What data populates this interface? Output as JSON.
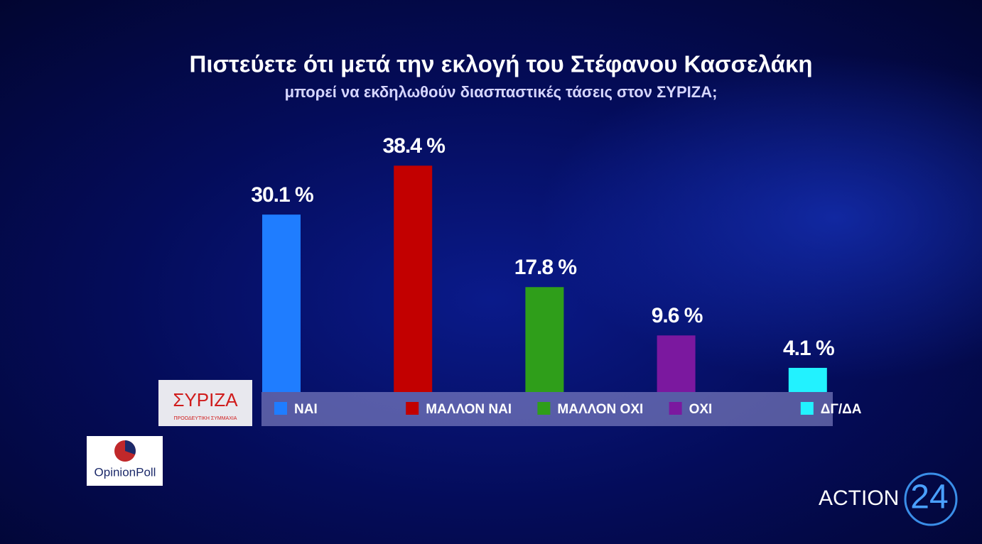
{
  "chart_data": {
    "type": "bar",
    "title": "Πιστεύετε ότι μετά την εκλογή του Στέφανου Κασσελάκη",
    "subtitle": "μπορεί να εκδηλωθούν διασπαστικές τάσεις στον ΣΥΡΙΖΑ;",
    "categories": [
      "ΝΑΙ",
      "ΜΑΛΛΟΝ ΝΑΙ",
      "ΜΑΛΛΟΝ ΟΧΙ",
      "ΟΧΙ",
      "ΔΓ/ΔΑ"
    ],
    "values": [
      30.1,
      38.4,
      17.8,
      9.6,
      4.1
    ],
    "value_labels": [
      "30.1 %",
      "38.4 %",
      "17.8 %",
      "9.6 %",
      "4.1 %"
    ],
    "colors": [
      "#1f7dff",
      "#c20000",
      "#2f9e1a",
      "#7b189f",
      "#22f2ff"
    ]
  },
  "logos": {
    "party": "ΣΥΡΙΖΑ",
    "party_tagline": "ΠΡΟΟΔΕΥΤΙΚΗ ΣΥΜΜΑΧΙΑ",
    "pollster": "OpinionPoll",
    "channel": "ACTION",
    "channel_number": "24"
  }
}
